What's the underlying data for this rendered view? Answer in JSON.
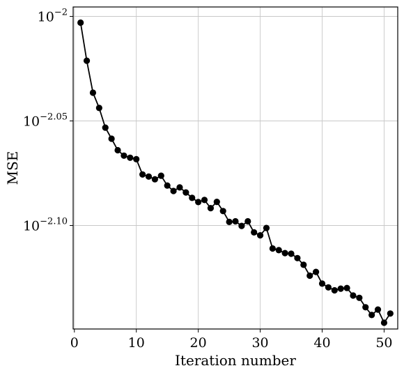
{
  "chart_data": {
    "type": "line",
    "title": "",
    "xlabel": "Iteration number",
    "ylabel": "MSE",
    "y_scale": "log10",
    "xlim": [
      -0.2,
      52.2
    ],
    "ylim_log10": [
      -2.1495,
      -1.9955
    ],
    "x_ticks": [
      0,
      10,
      20,
      30,
      40,
      50
    ],
    "x_tick_labels": [
      "0",
      "10",
      "20",
      "30",
      "40",
      "50"
    ],
    "y_ticks_log10": [
      -2.0,
      -2.05,
      -2.1
    ],
    "y_tick_labels": [
      {
        "base": "10",
        "exponent": "−2"
      },
      {
        "base": "10",
        "exponent": "−2.05"
      },
      {
        "base": "10",
        "exponent": "−2.10"
      }
    ],
    "grid": true,
    "legend": null,
    "series": [
      {
        "name": "MSE",
        "color": "#000000",
        "marker": "circle",
        "x": [
          1,
          2,
          3,
          4,
          5,
          6,
          7,
          8,
          9,
          10,
          11,
          12,
          13,
          14,
          15,
          16,
          17,
          18,
          19,
          20,
          21,
          22,
          23,
          24,
          25,
          26,
          27,
          28,
          29,
          30,
          31,
          32,
          33,
          34,
          35,
          36,
          37,
          38,
          39,
          40,
          41,
          42,
          43,
          44,
          45,
          46,
          47,
          48,
          49,
          50,
          51
        ],
        "log10_values": [
          -2.003,
          -2.0212,
          -2.0365,
          -2.0438,
          -2.0532,
          -2.0585,
          -2.064,
          -2.0666,
          -2.0676,
          -2.0683,
          -2.0756,
          -2.0766,
          -2.0779,
          -2.0762,
          -2.0809,
          -2.0835,
          -2.0818,
          -2.0842,
          -2.0868,
          -2.0888,
          -2.0878,
          -2.0917,
          -2.0887,
          -2.0931,
          -2.0983,
          -2.098,
          -2.1002,
          -2.098,
          -2.1033,
          -2.1047,
          -2.1012,
          -2.111,
          -2.1118,
          -2.1132,
          -2.1135,
          -2.1156,
          -2.1188,
          -2.124,
          -2.1222,
          -2.1278,
          -2.1296,
          -2.131,
          -2.1302,
          -2.1299,
          -2.1335,
          -2.1346,
          -2.1391,
          -2.1428,
          -2.1402,
          -2.1465,
          -2.1421
        ]
      }
    ]
  }
}
